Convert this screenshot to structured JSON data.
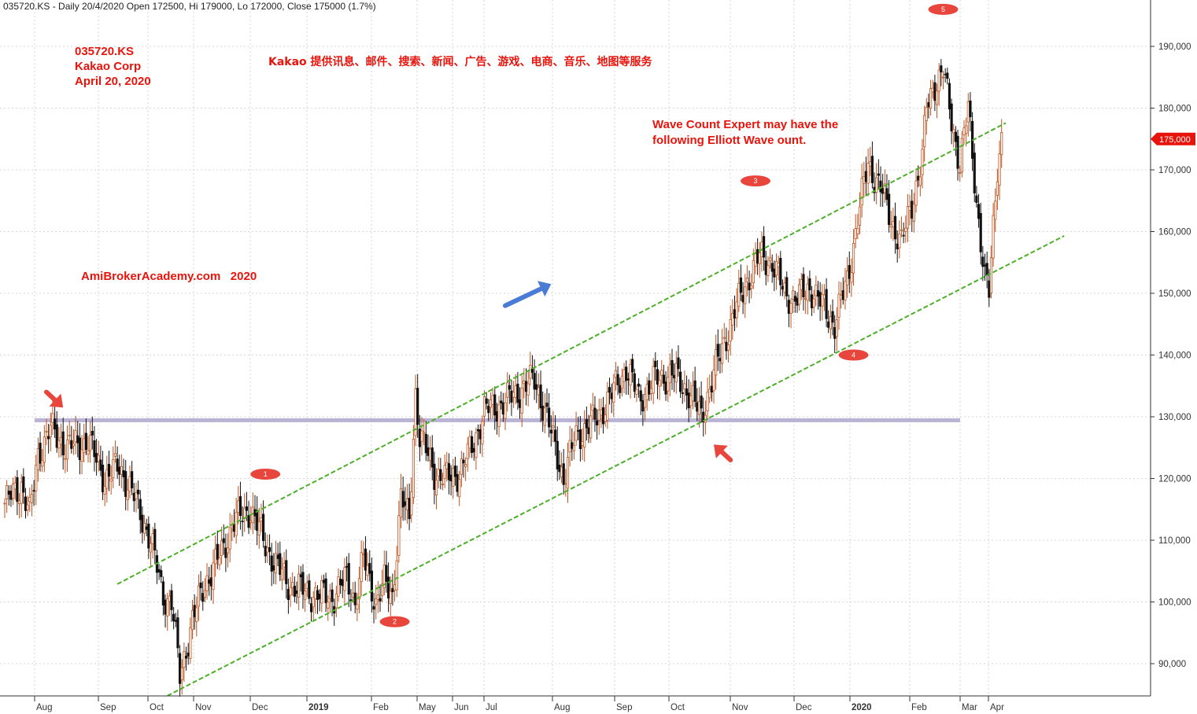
{
  "header_text": "035720.KS - Daily 20/4/2020 Open 172500, Hi 179000, Lo 172000, Close 175000 (1.7%)",
  "title_block": [
    "035720.KS",
    "Kakao Corp",
    "April 20, 2020"
  ],
  "description_cn": "Kakao 提供讯息、邮件、搜索、新闻、广告、游戏、电商、音乐、地图等服务",
  "watermark": "AmiBrokerAcademy.com   2020",
  "annotation": [
    "Wave Count Expert may have the",
    "following Elliott Wave ount."
  ],
  "last_price_label": "175,000",
  "chart_data": {
    "type": "candlestick",
    "y_ticks": [
      90000,
      100000,
      110000,
      120000,
      130000,
      140000,
      150000,
      160000,
      170000,
      180000,
      190000
    ],
    "y_tick_labels": [
      "90,000",
      "100,000",
      "110,000",
      "120,000",
      "130,000",
      "140,000",
      "150,000",
      "160,000",
      "170,000",
      "180,000",
      "190,000"
    ],
    "ylim": [
      83000,
      197000
    ],
    "x_tick_labels": [
      "Aug",
      "Sep",
      "Oct",
      "Nov",
      "Dec",
      "2019",
      "Feb",
      "May",
      "Jun",
      "Jul",
      "Aug",
      "Sep",
      "Oct",
      "Nov",
      "Dec",
      "2020",
      "Feb",
      "Mar",
      "Apr"
    ],
    "bold_x_ticks": [
      "2019",
      "2020"
    ],
    "close_keypoints": [
      [
        0,
        116000
      ],
      [
        8,
        119000
      ],
      [
        12,
        114000
      ],
      [
        16,
        124000
      ],
      [
        22,
        128000
      ],
      [
        30,
        125000
      ],
      [
        40,
        126000
      ],
      [
        48,
        120000
      ],
      [
        55,
        122000
      ],
      [
        62,
        117000
      ],
      [
        70,
        110000
      ],
      [
        76,
        101000
      ],
      [
        80,
        100000
      ],
      [
        84,
        88000
      ],
      [
        90,
        97000
      ],
      [
        96,
        103000
      ],
      [
        104,
        108000
      ],
      [
        110,
        113000
      ],
      [
        118,
        115000
      ],
      [
        124,
        110000
      ],
      [
        130,
        106000
      ],
      [
        136,
        103000
      ],
      [
        142,
        102000
      ],
      [
        150,
        101000
      ],
      [
        158,
        101000
      ],
      [
        164,
        104000
      ],
      [
        168,
        100000
      ],
      [
        172,
        107000
      ],
      [
        178,
        100000
      ],
      [
        182,
        103000
      ],
      [
        186,
        101000
      ],
      [
        190,
        117000
      ],
      [
        194,
        113000
      ],
      [
        197,
        134000
      ],
      [
        199,
        127000
      ],
      [
        206,
        121000
      ],
      [
        212,
        120000
      ],
      [
        218,
        121000
      ],
      [
        224,
        125000
      ],
      [
        230,
        131000
      ],
      [
        238,
        132000
      ],
      [
        246,
        134000
      ],
      [
        254,
        136000
      ],
      [
        258,
        132000
      ],
      [
        264,
        125000
      ],
      [
        268,
        120000
      ],
      [
        274,
        127000
      ],
      [
        282,
        129000
      ],
      [
        290,
        133000
      ],
      [
        298,
        138000
      ],
      [
        304,
        133000
      ],
      [
        312,
        136000
      ],
      [
        320,
        137000
      ],
      [
        328,
        134000
      ],
      [
        334,
        130000
      ],
      [
        340,
        137000
      ],
      [
        344,
        141000
      ],
      [
        350,
        147000
      ],
      [
        356,
        152000
      ],
      [
        362,
        156000
      ],
      [
        368,
        155000
      ],
      [
        374,
        150000
      ],
      [
        380,
        149000
      ],
      [
        386,
        151000
      ],
      [
        392,
        148000
      ],
      [
        398,
        145000
      ],
      [
        404,
        152000
      ],
      [
        410,
        164000
      ],
      [
        414,
        171000
      ],
      [
        420,
        167000
      ],
      [
        426,
        161000
      ],
      [
        430,
        158000
      ],
      [
        436,
        166000
      ],
      [
        440,
        172000
      ],
      [
        442,
        180000
      ],
      [
        446,
        184000
      ],
      [
        450,
        186000
      ],
      [
        454,
        178000
      ],
      [
        458,
        171000
      ],
      [
        462,
        180000
      ],
      [
        466,
        165000
      ],
      [
        470,
        152000
      ],
      [
        472,
        150000
      ],
      [
        474,
        161000
      ],
      [
        476,
        171000
      ],
      [
        478,
        175000
      ]
    ],
    "horizontal_level": 129500,
    "channel": {
      "upper": {
        "x0": 54,
        "y0": 102900,
        "x1": 480,
        "y1": 177600
      },
      "lower": {
        "x0": 78,
        "y0": 84800,
        "x1": 508,
        "y1": 159300
      }
    },
    "wave_labels": [
      {
        "label": "1",
        "x": 125,
        "y": 120700
      },
      {
        "label": "2",
        "x": 187,
        "y": 96800
      },
      {
        "label": "3",
        "x": 360,
        "y": 168200
      },
      {
        "label": "4",
        "x": 407,
        "y": 140000
      },
      {
        "label": "5",
        "x": 450,
        "y": 196000
      }
    ],
    "arrows": [
      {
        "name": "red-arrow-top-left",
        "color": "#e8453c",
        "x": 20,
        "y": 134000,
        "dx": 8,
        "dy": -2500
      },
      {
        "name": "blue-arrow-up",
        "color": "#4a7cd6",
        "x": 240,
        "y": 148000,
        "dx": 22,
        "dy": 3500
      },
      {
        "name": "red-arrow-bottom",
        "color": "#e8453c",
        "x": 348,
        "y": 123000,
        "dx": -8,
        "dy": 2500
      }
    ],
    "last_close": 175000,
    "grid": true
  },
  "colors": {
    "up_candle": "#c0531f",
    "down_candle": "#111111",
    "channel": "#4caf28",
    "horizontal_level": "#b9b4d6",
    "label_red": "#e8140c",
    "price_tag": "#e8140c"
  }
}
